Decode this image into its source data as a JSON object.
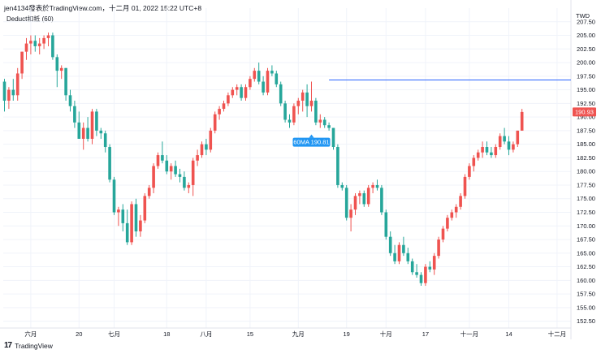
{
  "header": {
    "text": "jen4134發表於TradingView.com，十二月 01, 2022 15:22 UTC+8",
    "indicator": "Deduct扣抵 (60)",
    "currency": "TWD"
  },
  "footer": {
    "logo": "17",
    "brand": "TradingView"
  },
  "colors": {
    "up": "#ef5350",
    "down": "#26a69a",
    "line": "#2962ff",
    "label_bg": "#2196f3",
    "price_tag": "#ef5350",
    "grid": "#f0f3fa",
    "axis": "#e0e3eb"
  },
  "chart_data": {
    "type": "candlestick",
    "ylim": [
      151.25,
      210
    ],
    "y_ticks": [
      152.5,
      155,
      157.5,
      160,
      162.5,
      165,
      167.5,
      170,
      172.5,
      175,
      177.5,
      180,
      182.5,
      185,
      187.5,
      190,
      192.5,
      195,
      197.5,
      200,
      202.5,
      205,
      207.5
    ],
    "x_ticks": [
      {
        "label": "六月",
        "index": 6
      },
      {
        "label": "20",
        "index": 17
      },
      {
        "label": "七月",
        "index": 25
      },
      {
        "label": "18",
        "index": 37
      },
      {
        "label": "八月",
        "index": 46
      },
      {
        "label": "15",
        "index": 56
      },
      {
        "label": "九月",
        "index": 67
      },
      {
        "label": "19",
        "index": 78
      },
      {
        "label": "十月",
        "index": 87
      },
      {
        "label": "17",
        "index": 96
      },
      {
        "label": "十一月",
        "index": 106
      },
      {
        "label": "14",
        "index": 115
      },
      {
        "label": "十二月",
        "index": 126
      }
    ],
    "last_price": "190.93",
    "horizontal_line": {
      "value": 196.8,
      "from_index": 74
    },
    "ma_label": {
      "text": "60MA 190.81",
      "index": 70,
      "value": 186.2
    },
    "ohlc": [
      [
        196.5,
        197,
        191,
        193
      ],
      [
        193,
        195.5,
        191.5,
        195
      ],
      [
        195,
        197,
        193,
        194
      ],
      [
        194,
        199,
        193,
        198
      ],
      [
        198,
        202,
        197,
        202
      ],
      [
        202,
        204.5,
        200.5,
        203.5
      ],
      [
        203.5,
        205,
        201.5,
        204
      ],
      [
        204,
        205,
        202,
        203
      ],
      [
        203,
        204.5,
        201.5,
        203.5
      ],
      [
        203.5,
        205,
        202.5,
        204.5
      ],
      [
        204.5,
        205.5,
        203,
        205
      ],
      [
        205,
        205.5,
        200.5,
        201
      ],
      [
        201,
        201.5,
        195.5,
        198.5
      ],
      [
        198.5,
        199.5,
        197,
        199
      ],
      [
        199,
        199,
        193,
        194
      ],
      [
        194,
        195,
        191,
        192
      ],
      [
        192,
        193,
        188,
        189
      ],
      [
        189,
        191,
        186,
        186
      ],
      [
        186,
        189,
        184,
        188
      ],
      [
        188,
        190,
        185.5,
        186
      ],
      [
        186,
        191.5,
        185,
        191
      ],
      [
        191,
        191.5,
        186.5,
        187.5
      ],
      [
        187.5,
        188,
        186,
        187
      ],
      [
        187,
        187.5,
        183.5,
        184.5
      ],
      [
        184.5,
        185,
        178,
        178.5
      ],
      [
        178.5,
        179,
        172,
        172.5
      ],
      [
        172.5,
        173.5,
        170,
        173
      ],
      [
        173,
        174,
        169,
        170.5
      ],
      [
        170.5,
        173,
        166.5,
        167
      ],
      [
        167,
        174.5,
        166.5,
        174
      ],
      [
        174,
        175,
        168,
        169
      ],
      [
        169,
        172,
        168,
        171
      ],
      [
        171,
        176,
        170.5,
        175.5
      ],
      [
        175.5,
        177.5,
        175,
        177
      ],
      [
        177,
        181.5,
        176,
        181
      ],
      [
        181,
        183.5,
        180.5,
        183
      ],
      [
        183,
        185.5,
        181.5,
        182
      ],
      [
        182,
        183,
        179.5,
        180
      ],
      [
        180,
        181.5,
        178.5,
        181
      ],
      [
        181,
        182,
        179,
        179.5
      ],
      [
        179.5,
        180.5,
        178,
        179
      ],
      [
        179,
        180,
        176.5,
        177
      ],
      [
        177,
        178,
        176,
        177.5
      ],
      [
        177.5,
        182.5,
        175.5,
        182
      ],
      [
        182,
        184,
        181,
        183
      ],
      [
        183,
        185.5,
        182.5,
        185
      ],
      [
        185,
        186,
        183,
        184
      ],
      [
        184,
        188,
        183.5,
        187.5
      ],
      [
        187.5,
        191,
        187,
        190.5
      ],
      [
        190.5,
        192,
        189.5,
        191.5
      ],
      [
        191.5,
        193,
        191,
        192.5
      ],
      [
        192.5,
        194.5,
        192,
        194
      ],
      [
        194,
        195.5,
        193.5,
        195
      ],
      [
        195,
        196,
        194,
        195.5
      ],
      [
        195.5,
        196,
        193,
        193.5
      ],
      [
        193.5,
        196,
        193,
        195.5
      ],
      [
        195.5,
        197.5,
        195,
        197
      ],
      [
        197,
        199,
        196.5,
        198.5
      ],
      [
        198.5,
        200,
        196,
        196.5
      ],
      [
        196.5,
        197.5,
        194,
        194.5
      ],
      [
        194.5,
        199,
        194,
        198.5
      ],
      [
        198.5,
        199.5,
        197.5,
        198
      ],
      [
        198,
        198.5,
        195.5,
        196
      ],
      [
        196,
        196.5,
        192,
        192.5
      ],
      [
        192.5,
        193,
        189,
        189.5
      ],
      [
        189.5,
        190.5,
        188,
        189
      ],
      [
        189,
        192.5,
        188.5,
        192
      ],
      [
        192,
        193.5,
        190.5,
        193
      ],
      [
        193,
        195,
        191,
        194.5
      ],
      [
        194.5,
        196,
        190,
        192
      ],
      [
        192,
        196.5,
        191,
        193
      ],
      [
        193,
        193.5,
        188.5,
        189
      ],
      [
        189,
        190.5,
        188,
        189.5
      ],
      [
        189.5,
        190,
        188,
        188.5
      ],
      [
        188.5,
        189,
        187.5,
        188
      ],
      [
        188,
        188,
        184,
        184.5
      ],
      [
        184.5,
        185,
        177,
        177.5
      ],
      [
        177.5,
        178,
        176.5,
        177
      ],
      [
        177,
        177.5,
        171,
        171.5
      ],
      [
        171.5,
        174,
        169,
        173
      ],
      [
        173,
        176,
        172,
        175.5
      ],
      [
        175.5,
        176.5,
        174,
        176
      ],
      [
        176,
        176.5,
        173.5,
        174
      ],
      [
        174,
        177.5,
        173.5,
        177
      ],
      [
        177,
        178,
        176,
        177.5
      ],
      [
        177.5,
        178.5,
        176.5,
        177
      ],
      [
        177,
        177.5,
        172,
        172.5
      ],
      [
        172.5,
        173,
        167.5,
        168
      ],
      [
        168,
        169,
        164.5,
        165
      ],
      [
        165,
        166.5,
        163,
        163.5
      ],
      [
        163.5,
        167,
        163,
        166.5
      ],
      [
        166.5,
        168,
        164.5,
        165
      ],
      [
        165,
        166,
        163,
        163.5
      ],
      [
        163.5,
        164,
        161,
        161.5
      ],
      [
        161.5,
        163,
        160.5,
        161
      ],
      [
        161,
        161.5,
        159,
        159.5
      ],
      [
        159.5,
        163,
        159,
        162.5
      ],
      [
        162.5,
        163.5,
        161.5,
        162
      ],
      [
        162,
        165,
        161,
        164.5
      ],
      [
        164.5,
        168,
        164,
        167.5
      ],
      [
        167.5,
        170,
        167,
        169.5
      ],
      [
        169.5,
        172,
        169,
        171.5
      ],
      [
        171.5,
        173,
        171,
        172.5
      ],
      [
        172.5,
        174,
        171.5,
        173.5
      ],
      [
        173.5,
        176,
        173,
        175.5
      ],
      [
        175.5,
        179.5,
        175,
        179
      ],
      [
        179,
        181.5,
        178.5,
        181
      ],
      [
        181,
        183,
        180,
        182.5
      ],
      [
        182.5,
        184,
        182,
        183.5
      ],
      [
        183.5,
        185.5,
        182.5,
        184.5
      ],
      [
        184.5,
        185.5,
        183,
        183.5
      ],
      [
        183.5,
        184.5,
        182.5,
        183
      ],
      [
        183,
        185,
        182.5,
        184.5
      ],
      [
        184.5,
        187,
        184,
        186.5
      ],
      [
        186.5,
        188,
        185,
        185.5
      ],
      [
        185.5,
        186.5,
        183,
        184
      ],
      [
        184,
        185.5,
        183.5,
        185
      ],
      [
        185,
        187.5,
        184.5,
        187.5
      ],
      [
        187.5,
        191.5,
        187.5,
        190.93
      ]
    ]
  }
}
